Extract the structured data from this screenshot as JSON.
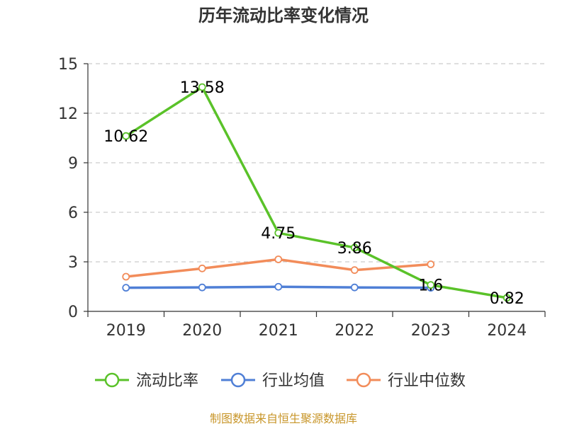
{
  "chart_data": {
    "type": "line",
    "title": "历年流动比率变化情况",
    "categories": [
      "2019",
      "2020",
      "2021",
      "2022",
      "2023",
      "2024"
    ],
    "ylim": [
      0,
      15
    ],
    "yticks": [
      0,
      3,
      6,
      9,
      12,
      15
    ],
    "grid": true,
    "legend_position": "bottom",
    "series": [
      {
        "name": "流动比率",
        "color": "#5ac229",
        "values": [
          10.62,
          13.58,
          4.75,
          3.86,
          1.6,
          0.82
        ],
        "show_labels": true,
        "labels": [
          "10.62",
          "13.58",
          "4.75",
          "3.86",
          "1.6",
          "0.82"
        ]
      },
      {
        "name": "行业均值",
        "color": "#4f7fd6",
        "values": [
          1.43,
          1.45,
          1.49,
          1.45,
          1.43,
          null
        ],
        "show_labels": false
      },
      {
        "name": "行业中位数",
        "color": "#f28c5a",
        "values": [
          2.1,
          2.6,
          3.15,
          2.5,
          2.85,
          null
        ],
        "show_labels": false
      }
    ]
  },
  "source": "制图数据来自恒生聚源数据库"
}
